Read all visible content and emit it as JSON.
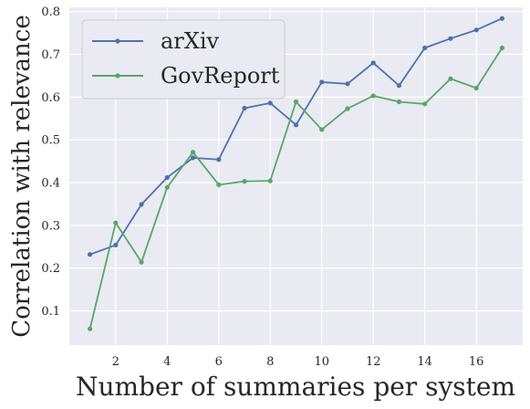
{
  "chart_data": {
    "type": "line",
    "xlabel": "Number of summaries per system",
    "ylabel": "Correlation with relevance",
    "x": [
      1,
      2,
      3,
      4,
      5,
      6,
      7,
      8,
      9,
      10,
      11,
      12,
      13,
      14,
      15,
      16,
      17
    ],
    "xlim": [
      0.2,
      17.8
    ],
    "ylim": [
      0.02,
      0.81
    ],
    "xticks": [
      2,
      4,
      6,
      8,
      10,
      12,
      14,
      16
    ],
    "yticks": [
      0.1,
      0.2,
      0.3,
      0.4,
      0.5,
      0.6,
      0.7,
      0.8
    ],
    "grid": true,
    "legend_position": "top-left",
    "series": [
      {
        "name": "arXiv",
        "color": "#4c72b0",
        "values": [
          0.232,
          0.254,
          0.349,
          0.412,
          0.458,
          0.454,
          0.574,
          0.586,
          0.535,
          0.635,
          0.631,
          0.68,
          0.627,
          0.715,
          0.737,
          0.757,
          0.784
        ]
      },
      {
        "name": "GovReport",
        "color": "#55a868",
        "values": [
          0.058,
          0.306,
          0.214,
          0.389,
          0.471,
          0.395,
          0.403,
          0.404,
          0.589,
          0.524,
          0.573,
          0.603,
          0.589,
          0.584,
          0.643,
          0.621,
          0.715
        ]
      }
    ]
  }
}
